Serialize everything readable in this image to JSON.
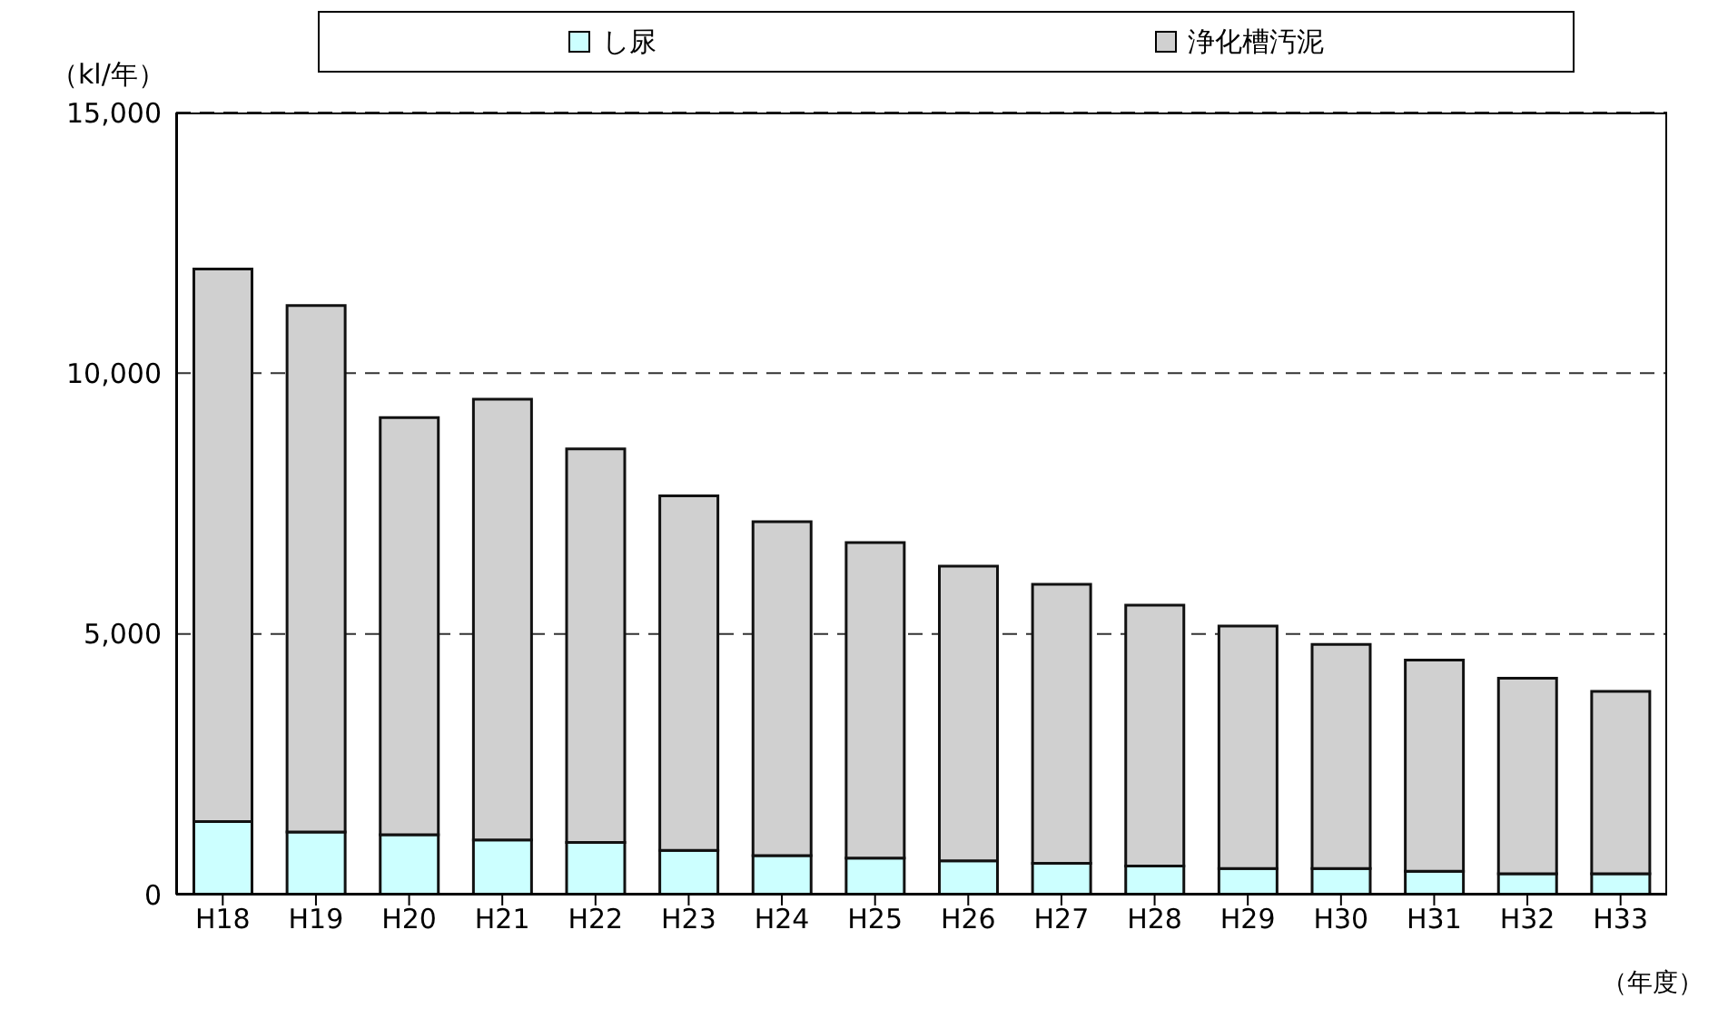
{
  "chart_data": {
    "type": "bar",
    "stacked": true,
    "ylabel": "（kl/年）",
    "xlabel": "（年度）",
    "categories": [
      "H18",
      "H19",
      "H20",
      "H21",
      "H22",
      "H23",
      "H24",
      "H25",
      "H26",
      "H27",
      "H28",
      "H29",
      "H30",
      "H31",
      "H32",
      "H33"
    ],
    "series": [
      {
        "name": "し尿",
        "color": "#ccffff",
        "values": [
          1400,
          1200,
          1150,
          1050,
          1000,
          850,
          750,
          700,
          650,
          600,
          550,
          500,
          500,
          450,
          400,
          400
        ]
      },
      {
        "name": "浄化槽汚泥",
        "color": "#d0d0d0",
        "values": [
          10600,
          10100,
          8000,
          8450,
          7550,
          6800,
          6400,
          6050,
          5650,
          5350,
          5000,
          4650,
          4300,
          4050,
          3750,
          3500
        ]
      }
    ],
    "ylim": [
      0,
      15000
    ],
    "yticks": [
      0,
      {
        "value": 5000,
        "label": "5,000"
      },
      {
        "value": 10000,
        "label": "10,000"
      },
      {
        "value": 15000,
        "label": "15,000"
      }
    ],
    "grid": "y",
    "legend": "top"
  }
}
